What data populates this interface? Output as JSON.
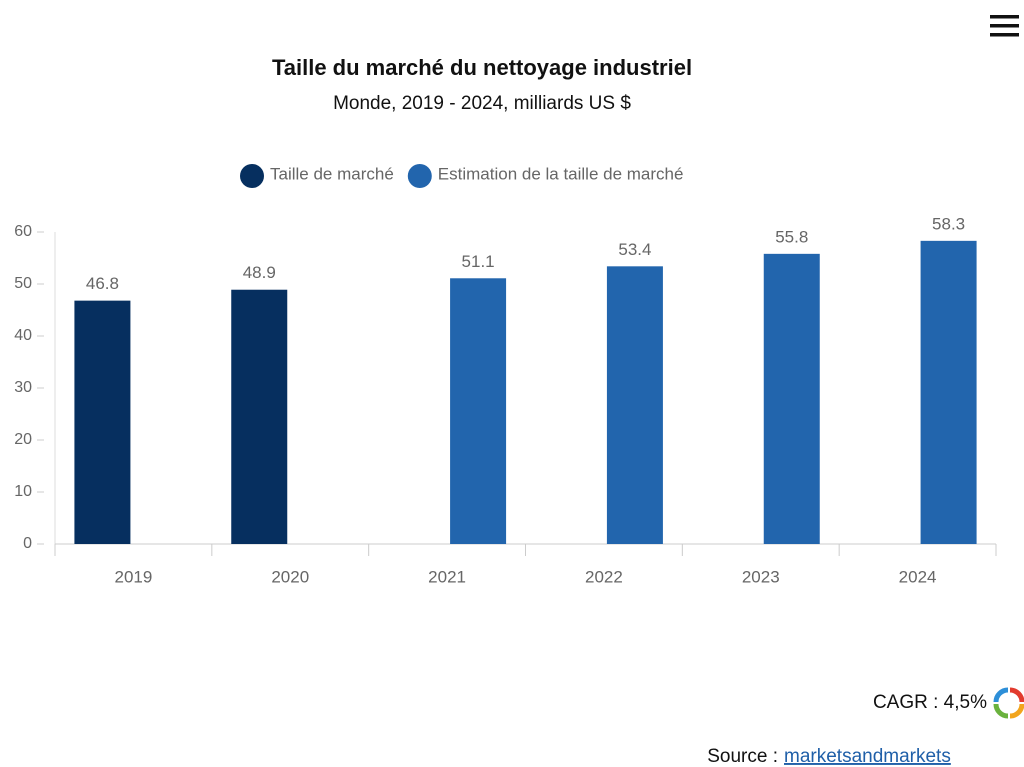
{
  "chart_data": {
    "type": "bar",
    "title": "Taille du marché du nettoyage industriel",
    "subtitle": "Monde, 2019 - 2024, milliards US $",
    "categories": [
      "2019",
      "2020",
      "2021",
      "2022",
      "2023",
      "2024"
    ],
    "series": [
      {
        "name": "Taille de marché",
        "color": "#062f5f",
        "values": [
          46.8,
          48.9,
          null,
          null,
          null,
          null
        ]
      },
      {
        "name": "Estimation de la taille de marché",
        "color": "#2265ad",
        "values": [
          null,
          null,
          51.1,
          53.4,
          55.8,
          58.3
        ]
      }
    ],
    "ylim": [
      0,
      60
    ],
    "yticks": [
      0,
      10,
      20,
      30,
      40,
      50,
      60
    ],
    "grid": false,
    "legend": "top"
  },
  "cagr": "CAGR : 4,5%",
  "source": {
    "label": "Source :",
    "link": "marketsandmarkets"
  }
}
